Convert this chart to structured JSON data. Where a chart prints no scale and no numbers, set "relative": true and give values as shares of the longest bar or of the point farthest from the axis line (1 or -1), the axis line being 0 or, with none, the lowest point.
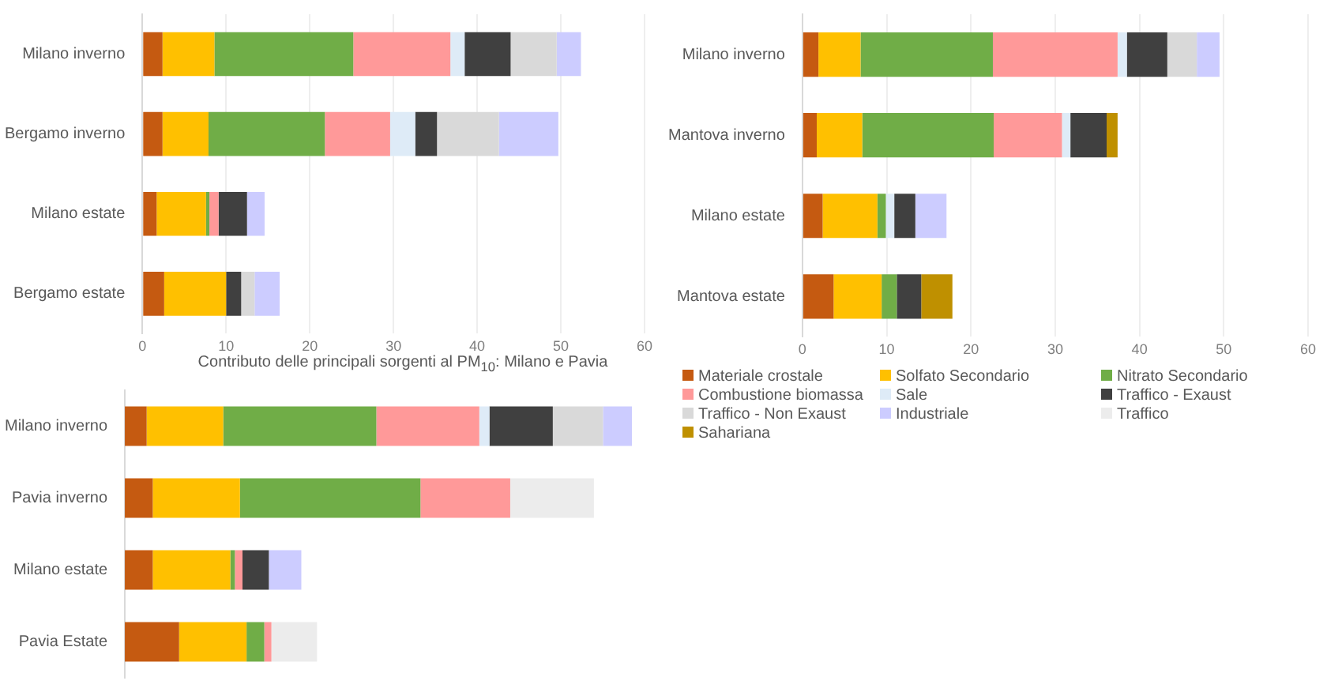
{
  "chart_data": [
    {
      "type": "bar",
      "orientation": "horizontal",
      "stacked": true,
      "grid": "x",
      "categories": [
        "Milano inverno",
        "Bergamo inverno",
        "Milano estate",
        "Bergamo estate"
      ],
      "xlim": [
        0,
        60
      ],
      "xticks": [
        0,
        10,
        20,
        30,
        40,
        50,
        60
      ],
      "series": [
        {
          "color": "#c55a11",
          "values": [
            2.4,
            2.4,
            1.7,
            2.6
          ]
        },
        {
          "color": "#ffc000",
          "values": [
            6.2,
            5.5,
            5.9,
            7.4
          ]
        },
        {
          "color": "#70ad47",
          "values": [
            16.6,
            13.9,
            0.4,
            null
          ]
        },
        {
          "color": "#ff9999",
          "values": [
            11.6,
            7.8,
            1.1,
            null
          ]
        },
        {
          "color": "#deebf7",
          "values": [
            1.7,
            3.0,
            null,
            null
          ]
        },
        {
          "color": "#404040",
          "values": [
            5.5,
            2.6,
            3.4,
            1.8
          ]
        },
        {
          "color": "#d9d9d9",
          "values": [
            5.5,
            7.4,
            null,
            1.6
          ]
        },
        {
          "color": "#ccccff",
          "values": [
            2.9,
            7.1,
            2.1,
            3.0
          ]
        }
      ]
    },
    {
      "type": "bar",
      "orientation": "horizontal",
      "stacked": true,
      "grid": "x",
      "categories": [
        "Milano inverno",
        "Mantova inverno",
        "Milano estate",
        "Mantova estate"
      ],
      "xlim": [
        0,
        60
      ],
      "xticks": [
        0,
        10,
        20,
        30,
        40,
        50,
        60
      ],
      "series": [
        {
          "color": "#c55a11",
          "values": [
            1.9,
            1.7,
            2.4,
            3.7
          ]
        },
        {
          "color": "#ffc000",
          "values": [
            5.0,
            5.4,
            6.5,
            5.7
          ]
        },
        {
          "color": "#70ad47",
          "values": [
            15.7,
            15.6,
            1.0,
            1.8
          ]
        },
        {
          "color": "#ff9999",
          "values": [
            14.8,
            8.1,
            null,
            null
          ]
        },
        {
          "color": "#deebf7",
          "values": [
            1.1,
            1.0,
            1.0,
            null
          ]
        },
        {
          "color": "#404040",
          "values": [
            4.8,
            4.3,
            2.5,
            2.9
          ]
        },
        {
          "color": "#d9d9d9",
          "values": [
            3.5,
            null,
            null,
            null
          ]
        },
        {
          "color": "#ccccff",
          "values": [
            2.7,
            null,
            3.7,
            null
          ]
        },
        {
          "color": "#bf9000",
          "values": [
            null,
            1.3,
            null,
            3.7
          ]
        }
      ]
    },
    {
      "type": "bar",
      "orientation": "horizontal",
      "stacked": true,
      "relative": true,
      "legend": "right",
      "title": "Contributo delle principali sorgenti al PM$_{10}$: Milano e Pavia",
      "categories": [
        "Milano inverno",
        "Pavia inverno",
        "Milano estate",
        "Pavia Estate"
      ],
      "series": [
        {
          "name": "Materiale crostale",
          "color": "#c55a11",
          "values": [
            0.043,
            0.055,
            0.055,
            0.107
          ]
        },
        {
          "name": "Solfato Secondario",
          "color": "#ffc000",
          "values": [
            0.151,
            0.172,
            0.153,
            0.133
          ]
        },
        {
          "name": "Nitrato Secondario",
          "color": "#70ad47",
          "values": [
            0.302,
            0.356,
            0.009,
            0.035
          ]
        },
        {
          "name": "Combustione biomassa",
          "color": "#ff9999",
          "values": [
            0.203,
            0.177,
            0.015,
            0.014
          ]
        },
        {
          "name": "Sale",
          "color": "#deebf7",
          "values": [
            0.02,
            null,
            null,
            null
          ]
        },
        {
          "name": "Traffico - Exaust",
          "color": "#404040",
          "values": [
            0.125,
            null,
            0.052,
            null
          ]
        },
        {
          "name": "Traffico - Non Exaust",
          "color": "#d9d9d9",
          "values": [
            0.099,
            null,
            null,
            null
          ]
        },
        {
          "name": "Industriale",
          "color": "#ccccff",
          "values": [
            0.057,
            null,
            0.064,
            null
          ]
        },
        {
          "name": "Traffico",
          "color": "#ececec",
          "values": [
            null,
            0.165,
            null,
            0.09
          ]
        },
        {
          "name": "Sahariana",
          "color": "#bf9000",
          "values": [
            null,
            null,
            null,
            null
          ]
        }
      ]
    }
  ]
}
